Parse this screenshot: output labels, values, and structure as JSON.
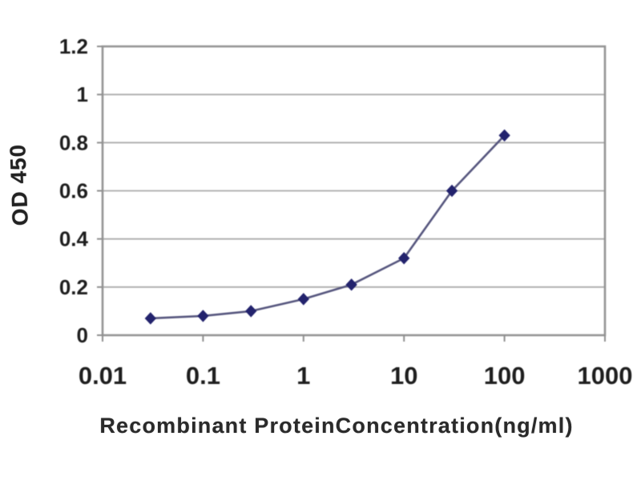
{
  "figure": {
    "background": "#ffffff",
    "description": "ELISA standard curve line chart"
  },
  "chart_data": {
    "type": "line",
    "title": "",
    "xlabel": "Recombinant ProteinConcentration(ng/ml)",
    "ylabel": "OD 450",
    "x_scale": "log",
    "xlim": [
      0.01,
      1000
    ],
    "ylim": [
      0,
      1.2
    ],
    "x_ticks": [
      0.01,
      0.1,
      1,
      10,
      100,
      1000
    ],
    "x_tick_labels": [
      "0.01",
      "0.1",
      "1",
      "10",
      "100",
      "1000"
    ],
    "y_ticks": [
      0,
      0.2,
      0.4,
      0.6,
      0.8,
      1,
      1.2
    ],
    "y_tick_labels": [
      "0",
      "0.2",
      "0.4",
      "0.6",
      "0.8",
      "1",
      "1.2"
    ],
    "grid": "horizontal",
    "legend_position": "none",
    "series": [
      {
        "name": "OD450 vs concentration",
        "marker": "diamond",
        "marker_color": "#23236d",
        "line_color": "#56567e",
        "x": [
          0.03,
          0.1,
          0.3,
          1,
          3,
          10,
          30,
          100
        ],
        "y": [
          0.07,
          0.08,
          0.1,
          0.15,
          0.21,
          0.32,
          0.6,
          0.83
        ]
      }
    ],
    "colors": {
      "gridline": "#ababab",
      "frame": "#949494",
      "tick": "#8f8f8f",
      "axis_text": "#1e1e1e"
    }
  }
}
